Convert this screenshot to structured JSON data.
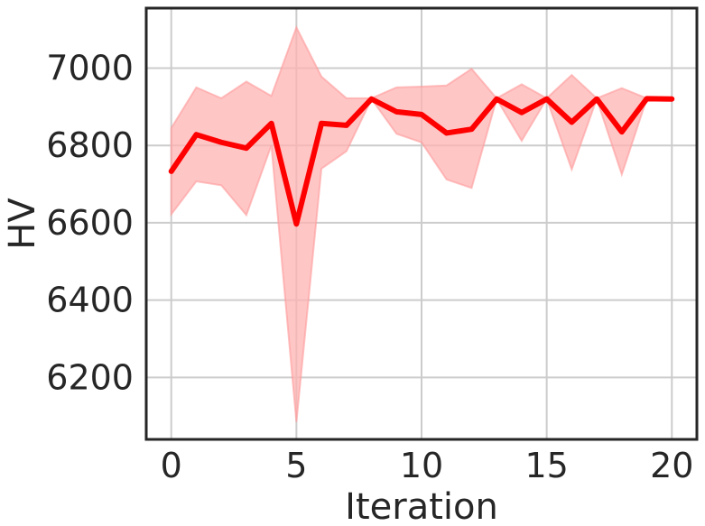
{
  "chart_data": {
    "type": "line",
    "title": "",
    "xlabel": "Iteration",
    "ylabel": "HV",
    "xlim": [
      -1,
      21
    ],
    "ylim": [
      6040,
      7155
    ],
    "xticks": [
      0,
      5,
      10,
      15,
      20
    ],
    "yticks": [
      6200,
      6400,
      6600,
      6800,
      7000
    ],
    "grid": true,
    "x": [
      0,
      1,
      2,
      3,
      4,
      5,
      6,
      7,
      8,
      9,
      10,
      11,
      12,
      13,
      14,
      15,
      16,
      17,
      18,
      19,
      20
    ],
    "series": [
      {
        "color": "#ff0000",
        "band_color": "#ffb3b3",
        "values": [
          6733,
          6828,
          6808,
          6793,
          6857,
          6597,
          6857,
          6852,
          6920,
          6887,
          6880,
          6832,
          6842,
          6920,
          6885,
          6920,
          6860,
          6920,
          6835,
          6921,
          6920
        ],
        "lower": [
          6622,
          6707,
          6697,
          6620,
          6800,
          6085,
          6740,
          6785,
          6920,
          6830,
          6808,
          6712,
          6690,
          6920,
          6812,
          6920,
          6738,
          6920,
          6725,
          6921,
          6920
        ],
        "upper": [
          6845,
          6950,
          6922,
          6965,
          6928,
          7105,
          6978,
          6922,
          6922,
          6950,
          6952,
          6955,
          6998,
          6922,
          6958,
          6922,
          6982,
          6922,
          6948,
          6922,
          6920
        ]
      }
    ]
  }
}
